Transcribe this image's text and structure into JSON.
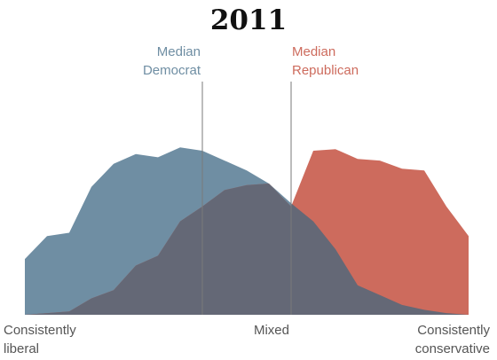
{
  "chart_data": {
    "type": "area",
    "title": "2011",
    "x": [
      0,
      1,
      2,
      3,
      4,
      5,
      6,
      7,
      8,
      9,
      10,
      11,
      12,
      13,
      14,
      15,
      16,
      17,
      18,
      19,
      20
    ],
    "ylim": [
      0,
      1
    ],
    "series": [
      {
        "name": "Democrats",
        "color": "#6f8ea3",
        "values": [
          0.34,
          0.48,
          0.5,
          0.78,
          0.92,
          0.98,
          0.96,
          1.02,
          1.0,
          0.94,
          0.88,
          0.8,
          0.68,
          0.57,
          0.4,
          0.18,
          0.12,
          0.06,
          0.03,
          0.01,
          0.0
        ]
      },
      {
        "name": "Republicans",
        "color": "#cd6b5d",
        "values": [
          0.0,
          0.01,
          0.02,
          0.1,
          0.15,
          0.3,
          0.36,
          0.57,
          0.66,
          0.76,
          0.79,
          0.8,
          0.66,
          1.0,
          1.01,
          0.95,
          0.94,
          0.89,
          0.88,
          0.66,
          0.48
        ]
      }
    ],
    "overlap_color": "#646876",
    "medians": [
      {
        "label_lines": [
          "Median",
          "Democrat"
        ],
        "x": 8,
        "color": "#6f8ea3"
      },
      {
        "label_lines": [
          "Median",
          "Republican"
        ],
        "x": 12,
        "color": "#cd6b5d"
      }
    ],
    "x_tick_labels": [
      {
        "lines": [
          "Consistently",
          "liberal"
        ],
        "x": 0,
        "anchor": "left"
      },
      {
        "lines": [
          "Mixed"
        ],
        "x": 10,
        "anchor": "center"
      },
      {
        "lines": [
          "Consistently",
          "conservative"
        ],
        "x": 20,
        "anchor": "right"
      }
    ],
    "median_line_color": "#7a7a7a"
  }
}
